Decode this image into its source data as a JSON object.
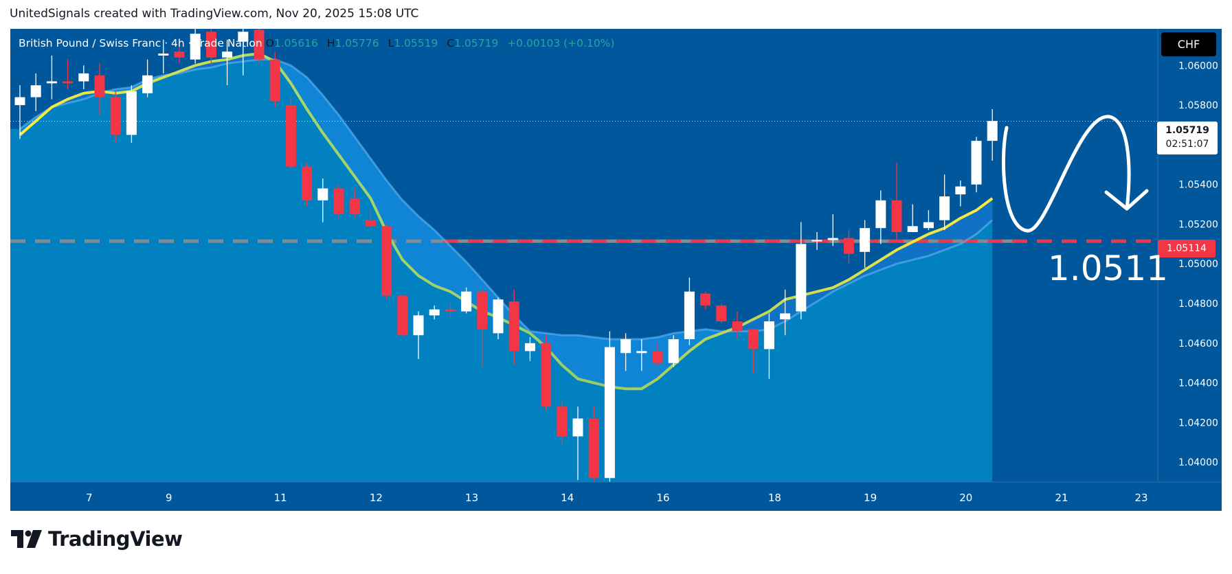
{
  "caption": "UnitedSignals created with TradingView.com, Nov 20, 2025 15:08 UTC",
  "legend": {
    "symbol": "British Pound / Swiss Franc · 4h · Trade Nation",
    "o_label": "O",
    "o": "1.05616",
    "h_label": "H",
    "h": "1.05776",
    "l_label": "L",
    "l": "1.05519",
    "c_label": "C",
    "c": "1.05719",
    "change": "+0.00103 (+0.10%)"
  },
  "currency": "CHF",
  "price_tag": {
    "price": "1.05719",
    "countdown": "02:51:07"
  },
  "level_tag": "1.05114",
  "annotation": "1.0511",
  "brand": "TradingView",
  "icons": {
    "logo": "tradingview-logo-icon",
    "arrow": "curved-down-arrow-icon"
  },
  "colors": {
    "background": "#01579b",
    "bull": "#ffffff",
    "bear": "#f23645",
    "ema_fast": "#ffeb3b",
    "ema_slow": "#64b5f6",
    "level": "#f23645"
  },
  "chart_data": {
    "type": "candlestick",
    "ylim": [
      1.039,
      1.0615
    ],
    "y_ticks": [
      "1.06000",
      "1.05800",
      "1.05600",
      "1.05400",
      "1.05200",
      "1.05000",
      "1.04800",
      "1.04600",
      "1.04400",
      "1.04200",
      "1.04000"
    ],
    "x_ticks": [
      {
        "label": "7",
        "index": 4
      },
      {
        "label": "9",
        "index": 9
      },
      {
        "label": "11",
        "index": 16
      },
      {
        "label": "12",
        "index": 22
      },
      {
        "label": "13",
        "index": 28
      },
      {
        "label": "14",
        "index": 34
      },
      {
        "label": "16",
        "index": 40
      },
      {
        "label": "18",
        "index": 47
      },
      {
        "label": "19",
        "index": 53
      },
      {
        "label": "20",
        "index": 59
      },
      {
        "label": "21",
        "index": 65
      },
      {
        "label": "23",
        "index": 70
      }
    ],
    "bar_count": 73,
    "candles": [
      {
        "o": 1.058,
        "h": 1.059,
        "l": 1.0563,
        "c": 1.0584
      },
      {
        "o": 1.0584,
        "h": 1.0596,
        "l": 1.0577,
        "c": 1.059
      },
      {
        "o": 1.0591,
        "h": 1.0605,
        "l": 1.0583,
        "c": 1.0592
      },
      {
        "o": 1.0592,
        "h": 1.0603,
        "l": 1.0588,
        "c": 1.0591
      },
      {
        "o": 1.0592,
        "h": 1.06,
        "l": 1.0588,
        "c": 1.0596
      },
      {
        "o": 1.0595,
        "h": 1.0601,
        "l": 1.0575,
        "c": 1.0584
      },
      {
        "o": 1.0584,
        "h": 1.0587,
        "l": 1.0561,
        "c": 1.0565
      },
      {
        "o": 1.0565,
        "h": 1.059,
        "l": 1.0561,
        "c": 1.0587
      },
      {
        "o": 1.0586,
        "h": 1.0603,
        "l": 1.0584,
        "c": 1.0595
      },
      {
        "o": 1.0605,
        "h": 1.0613,
        "l": 1.0596,
        "c": 1.0606
      },
      {
        "o": 1.0607,
        "h": 1.0612,
        "l": 1.0601,
        "c": 1.0604
      },
      {
        "o": 1.0603,
        "h": 1.0626,
        "l": 1.0601,
        "c": 1.0616
      },
      {
        "o": 1.0617,
        "h": 1.0624,
        "l": 1.06,
        "c": 1.0604
      },
      {
        "o": 1.0604,
        "h": 1.0613,
        "l": 1.059,
        "c": 1.0607
      },
      {
        "o": 1.0612,
        "h": 1.0622,
        "l": 1.0595,
        "c": 1.0617
      },
      {
        "o": 1.0618,
        "h": 1.062,
        "l": 1.0601,
        "c": 1.0603
      },
      {
        "o": 1.0603,
        "h": 1.0607,
        "l": 1.0579,
        "c": 1.0582
      },
      {
        "o": 1.058,
        "h": 1.0584,
        "l": 1.0548,
        "c": 1.0549
      },
      {
        "o": 1.0549,
        "h": 1.0551,
        "l": 1.0529,
        "c": 1.0532
      },
      {
        "o": 1.0532,
        "h": 1.0543,
        "l": 1.0521,
        "c": 1.0538
      },
      {
        "o": 1.0538,
        "h": 1.054,
        "l": 1.0523,
        "c": 1.0525
      },
      {
        "o": 1.0533,
        "h": 1.0538,
        "l": 1.0523,
        "c": 1.0525
      },
      {
        "o": 1.0522,
        "h": 1.0527,
        "l": 1.0518,
        "c": 1.0519
      },
      {
        "o": 1.0519,
        "h": 1.052,
        "l": 1.0482,
        "c": 1.0484
      },
      {
        "o": 1.0484,
        "h": 1.0484,
        "l": 1.0463,
        "c": 1.0464
      },
      {
        "o": 1.0464,
        "h": 1.0476,
        "l": 1.0452,
        "c": 1.0474
      },
      {
        "o": 1.0474,
        "h": 1.0479,
        "l": 1.0472,
        "c": 1.0477
      },
      {
        "o": 1.0477,
        "h": 1.048,
        "l": 1.0473,
        "c": 1.0476
      },
      {
        "o": 1.0476,
        "h": 1.0488,
        "l": 1.0475,
        "c": 1.0486
      },
      {
        "o": 1.0486,
        "h": 1.0488,
        "l": 1.0448,
        "c": 1.0467
      },
      {
        "o": 1.0465,
        "h": 1.0483,
        "l": 1.0462,
        "c": 1.0482
      },
      {
        "o": 1.0481,
        "h": 1.0487,
        "l": 1.0449,
        "c": 1.0456
      },
      {
        "o": 1.0456,
        "h": 1.0463,
        "l": 1.0451,
        "c": 1.046
      },
      {
        "o": 1.046,
        "h": 1.0464,
        "l": 1.0426,
        "c": 1.0428
      },
      {
        "o": 1.0428,
        "h": 1.0431,
        "l": 1.0409,
        "c": 1.0413
      },
      {
        "o": 1.0413,
        "h": 1.0428,
        "l": 1.0391,
        "c": 1.0422
      },
      {
        "o": 1.0422,
        "h": 1.0428,
        "l": 1.0386,
        "c": 1.0392
      },
      {
        "o": 1.0392,
        "h": 1.0466,
        "l": 1.0387,
        "c": 1.0458
      },
      {
        "o": 1.0455,
        "h": 1.0465,
        "l": 1.0446,
        "c": 1.0462
      },
      {
        "o": 1.0455,
        "h": 1.0462,
        "l": 1.0446,
        "c": 1.0456
      },
      {
        "o": 1.0456,
        "h": 1.046,
        "l": 1.0448,
        "c": 1.045
      },
      {
        "o": 1.045,
        "h": 1.0464,
        "l": 1.0448,
        "c": 1.0462
      },
      {
        "o": 1.0462,
        "h": 1.0493,
        "l": 1.0459,
        "c": 1.0486
      },
      {
        "o": 1.0485,
        "h": 1.0486,
        "l": 1.0477,
        "c": 1.0479
      },
      {
        "o": 1.0479,
        "h": 1.048,
        "l": 1.047,
        "c": 1.0471
      },
      {
        "o": 1.0471,
        "h": 1.0476,
        "l": 1.0462,
        "c": 1.0466
      },
      {
        "o": 1.0467,
        "h": 1.0467,
        "l": 1.0445,
        "c": 1.0457
      },
      {
        "o": 1.0457,
        "h": 1.0475,
        "l": 1.0442,
        "c": 1.0471
      },
      {
        "o": 1.0472,
        "h": 1.0487,
        "l": 1.0464,
        "c": 1.0475
      },
      {
        "o": 1.0476,
        "h": 1.0521,
        "l": 1.0472,
        "c": 1.051
      },
      {
        "o": 1.0512,
        "h": 1.0516,
        "l": 1.0507,
        "c": 1.0512
      },
      {
        "o": 1.0512,
        "h": 1.0525,
        "l": 1.0509,
        "c": 1.0513
      },
      {
        "o": 1.0513,
        "h": 1.0517,
        "l": 1.05,
        "c": 1.0505
      },
      {
        "o": 1.0506,
        "h": 1.0522,
        "l": 1.0498,
        "c": 1.0518
      },
      {
        "o": 1.0518,
        "h": 1.0537,
        "l": 1.051,
        "c": 1.0532
      },
      {
        "o": 1.0532,
        "h": 1.0551,
        "l": 1.0511,
        "c": 1.0516
      },
      {
        "o": 1.0516,
        "h": 1.053,
        "l": 1.0516,
        "c": 1.0519
      },
      {
        "o": 1.0518,
        "h": 1.0527,
        "l": 1.0517,
        "c": 1.0521
      },
      {
        "o": 1.0522,
        "h": 1.0545,
        "l": 1.0517,
        "c": 1.0534
      },
      {
        "o": 1.0535,
        "h": 1.0542,
        "l": 1.0529,
        "c": 1.0539
      },
      {
        "o": 1.054,
        "h": 1.0564,
        "l": 1.0536,
        "c": 1.0562
      },
      {
        "o": 1.0562,
        "h": 1.0578,
        "l": 1.0552,
        "c": 1.0572
      }
    ],
    "ema_fast": [
      1.0565,
      1.0572,
      1.0579,
      1.0583,
      1.0586,
      1.0587,
      1.0586,
      1.0587,
      1.0591,
      1.0594,
      1.0597,
      1.06,
      1.0602,
      1.0603,
      1.0605,
      1.0606,
      1.0602,
      1.0591,
      1.0578,
      1.0566,
      1.0555,
      1.0544,
      1.0533,
      1.0516,
      1.0502,
      1.0494,
      1.0489,
      1.0486,
      1.0481,
      1.0476,
      1.0473,
      1.0469,
      1.0465,
      1.0458,
      1.0449,
      1.0442,
      1.044,
      1.0438,
      1.0437,
      1.0437,
      1.0442,
      1.0449,
      1.0456,
      1.0462,
      1.0465,
      1.0468,
      1.0472,
      1.0476,
      1.0482,
      1.0484,
      1.0486,
      1.0488,
      1.0492,
      1.0497,
      1.0502,
      1.0507,
      1.0511,
      1.0515,
      1.0518,
      1.0523,
      1.0527,
      1.0533
    ],
    "ema_slow": [
      1.0568,
      1.0574,
      1.0579,
      1.0581,
      1.0583,
      1.0586,
      1.0588,
      1.0589,
      1.0593,
      1.0595,
      1.0596,
      1.0598,
      1.0599,
      1.0601,
      1.0602,
      1.0603,
      1.0603,
      1.06,
      1.0594,
      1.0585,
      1.0575,
      1.0564,
      1.0553,
      1.0542,
      1.0532,
      1.0524,
      1.0517,
      1.0509,
      1.0501,
      1.0492,
      1.0483,
      1.0474,
      1.0466,
      1.0465,
      1.0464,
      1.0464,
      1.0463,
      1.0462,
      1.0462,
      1.0462,
      1.0463,
      1.0465,
      1.0466,
      1.0467,
      1.0466,
      1.0466,
      1.0466,
      1.0467,
      1.0471,
      1.0476,
      1.0481,
      1.0486,
      1.049,
      1.0494,
      1.0497,
      1.05,
      1.0502,
      1.0504,
      1.0507,
      1.051,
      1.0515,
      1.0522
    ],
    "current_price": 1.05719,
    "support_level": 1.05114
  }
}
